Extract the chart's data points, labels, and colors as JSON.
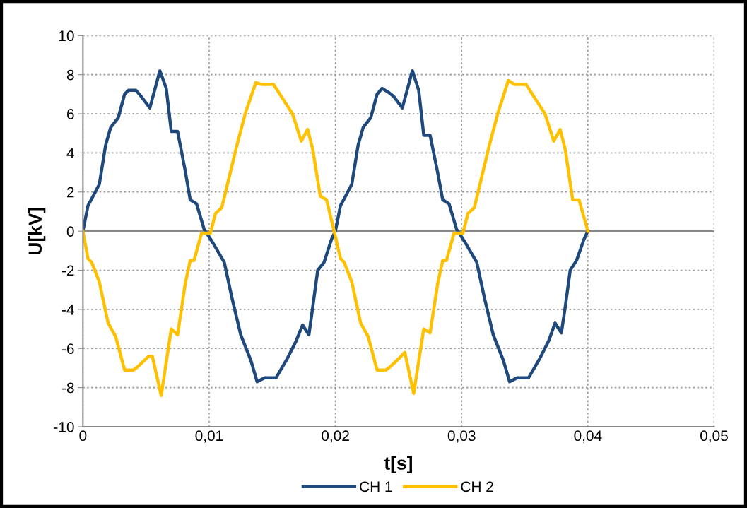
{
  "chart_data": {
    "type": "line",
    "xlabel": "t[s]",
    "ylabel": "U[kV]",
    "xlim": [
      0,
      0.05
    ],
    "ylim": [
      -10,
      10
    ],
    "xticks": [
      0,
      {
        "value": 0.01,
        "label": "0,01"
      },
      {
        "value": 0.02,
        "label": "0,02"
      },
      {
        "value": 0.03,
        "label": "0,03"
      },
      {
        "value": 0.04,
        "label": "0,04"
      },
      {
        "value": 0.05,
        "label": "0,05"
      }
    ],
    "yticks": [
      -10,
      -8,
      -6,
      -4,
      -2,
      0,
      2,
      4,
      6,
      8,
      10
    ],
    "ref_lines": [
      {
        "axis": "y",
        "value": 0,
        "color": "#888888"
      }
    ],
    "grid": true,
    "legend": "bottom",
    "line_style": "solid",
    "marker": "none",
    "series": [
      {
        "name": "CH 1",
        "color": "#1f497d",
        "x": [
          0,
          0.0004,
          0.0009,
          0.0013,
          0.0018,
          0.0022,
          0.0028,
          0.0033,
          0.0036,
          0.0042,
          0.0046,
          0.0053,
          0.0061,
          0.0066,
          0.007,
          0.0075,
          0.0081,
          0.0085,
          0.009,
          0.0096,
          0.0103,
          0.0112,
          0.0118,
          0.0125,
          0.0133,
          0.0138,
          0.0144,
          0.0153,
          0.0162,
          0.0169,
          0.0174,
          0.0179,
          0.0182,
          0.0186,
          0.0191,
          0.0197,
          0.02,
          0.0204,
          0.0209,
          0.0213,
          0.0218,
          0.0222,
          0.0228,
          0.0233,
          0.0237,
          0.0242,
          0.0246,
          0.0253,
          0.0261,
          0.0266,
          0.027,
          0.0275,
          0.0281,
          0.0285,
          0.029,
          0.0296,
          0.0303,
          0.0312,
          0.0318,
          0.0325,
          0.0333,
          0.0338,
          0.0344,
          0.0353,
          0.0362,
          0.0369,
          0.0374,
          0.0379,
          0.0382,
          0.0386,
          0.0391,
          0.0397,
          0.04
        ],
        "values": [
          0,
          1.3,
          1.9,
          2.4,
          4.4,
          5.3,
          5.8,
          7.0,
          7.2,
          7.2,
          6.9,
          6.3,
          8.2,
          7.3,
          5.1,
          5.1,
          3.1,
          1.6,
          1.4,
          0.1,
          -0.6,
          -1.6,
          -3.4,
          -5.3,
          -6.6,
          -7.7,
          -7.5,
          -7.5,
          -6.5,
          -5.6,
          -4.8,
          -5.3,
          -3.9,
          -2.0,
          -1.6,
          -0.4,
          0,
          1.3,
          1.9,
          2.4,
          4.4,
          5.3,
          5.8,
          7.0,
          7.3,
          7.1,
          6.9,
          6.3,
          8.2,
          7.2,
          4.9,
          4.9,
          3.0,
          1.6,
          1.4,
          0.1,
          -0.6,
          -1.6,
          -3.4,
          -5.3,
          -6.6,
          -7.7,
          -7.5,
          -7.5,
          -6.5,
          -5.6,
          -4.7,
          -5.2,
          -3.9,
          -2.0,
          -1.5,
          -0.4,
          0
        ]
      },
      {
        "name": "CH 2",
        "color": "#ffc000",
        "x": [
          0,
          0.0004,
          0.0007,
          0.0013,
          0.002,
          0.0026,
          0.0033,
          0.004,
          0.0044,
          0.0052,
          0.0055,
          0.0062,
          0.007,
          0.0075,
          0.0081,
          0.0085,
          0.0088,
          0.0094,
          0.0101,
          0.0105,
          0.011,
          0.0116,
          0.0122,
          0.0129,
          0.0137,
          0.0142,
          0.0151,
          0.0158,
          0.0166,
          0.0173,
          0.0178,
          0.0182,
          0.0188,
          0.0193,
          0.0199,
          0.0204,
          0.0207,
          0.0213,
          0.022,
          0.0226,
          0.0233,
          0.024,
          0.0244,
          0.0252,
          0.0255,
          0.0262,
          0.027,
          0.0275,
          0.0281,
          0.0285,
          0.0288,
          0.0294,
          0.0301,
          0.0305,
          0.031,
          0.0316,
          0.0322,
          0.0329,
          0.0337,
          0.0342,
          0.0351,
          0.0358,
          0.0366,
          0.0373,
          0.0378,
          0.0382,
          0.0388,
          0.0393,
          0.04
        ],
        "values": [
          0,
          -1.4,
          -1.6,
          -2.6,
          -4.7,
          -5.4,
          -7.1,
          -7.1,
          -6.9,
          -6.4,
          -6.4,
          -8.4,
          -5.0,
          -5.3,
          -2.7,
          -1.5,
          -1.5,
          -0.1,
          -0.1,
          0.9,
          1.2,
          2.8,
          4.4,
          6.1,
          7.6,
          7.5,
          7.5,
          6.8,
          6.0,
          4.6,
          5.2,
          4.2,
          1.8,
          1.6,
          0,
          -1.4,
          -1.6,
          -2.6,
          -4.7,
          -5.4,
          -7.1,
          -7.1,
          -6.9,
          -6.4,
          -6.2,
          -8.3,
          -5.0,
          -5.2,
          -2.7,
          -1.5,
          -1.5,
          -0.1,
          -0.1,
          0.9,
          1.2,
          2.8,
          4.4,
          6.1,
          7.7,
          7.5,
          7.5,
          6.8,
          6.0,
          4.6,
          5.2,
          4.2,
          1.6,
          1.6,
          0
        ]
      }
    ]
  }
}
